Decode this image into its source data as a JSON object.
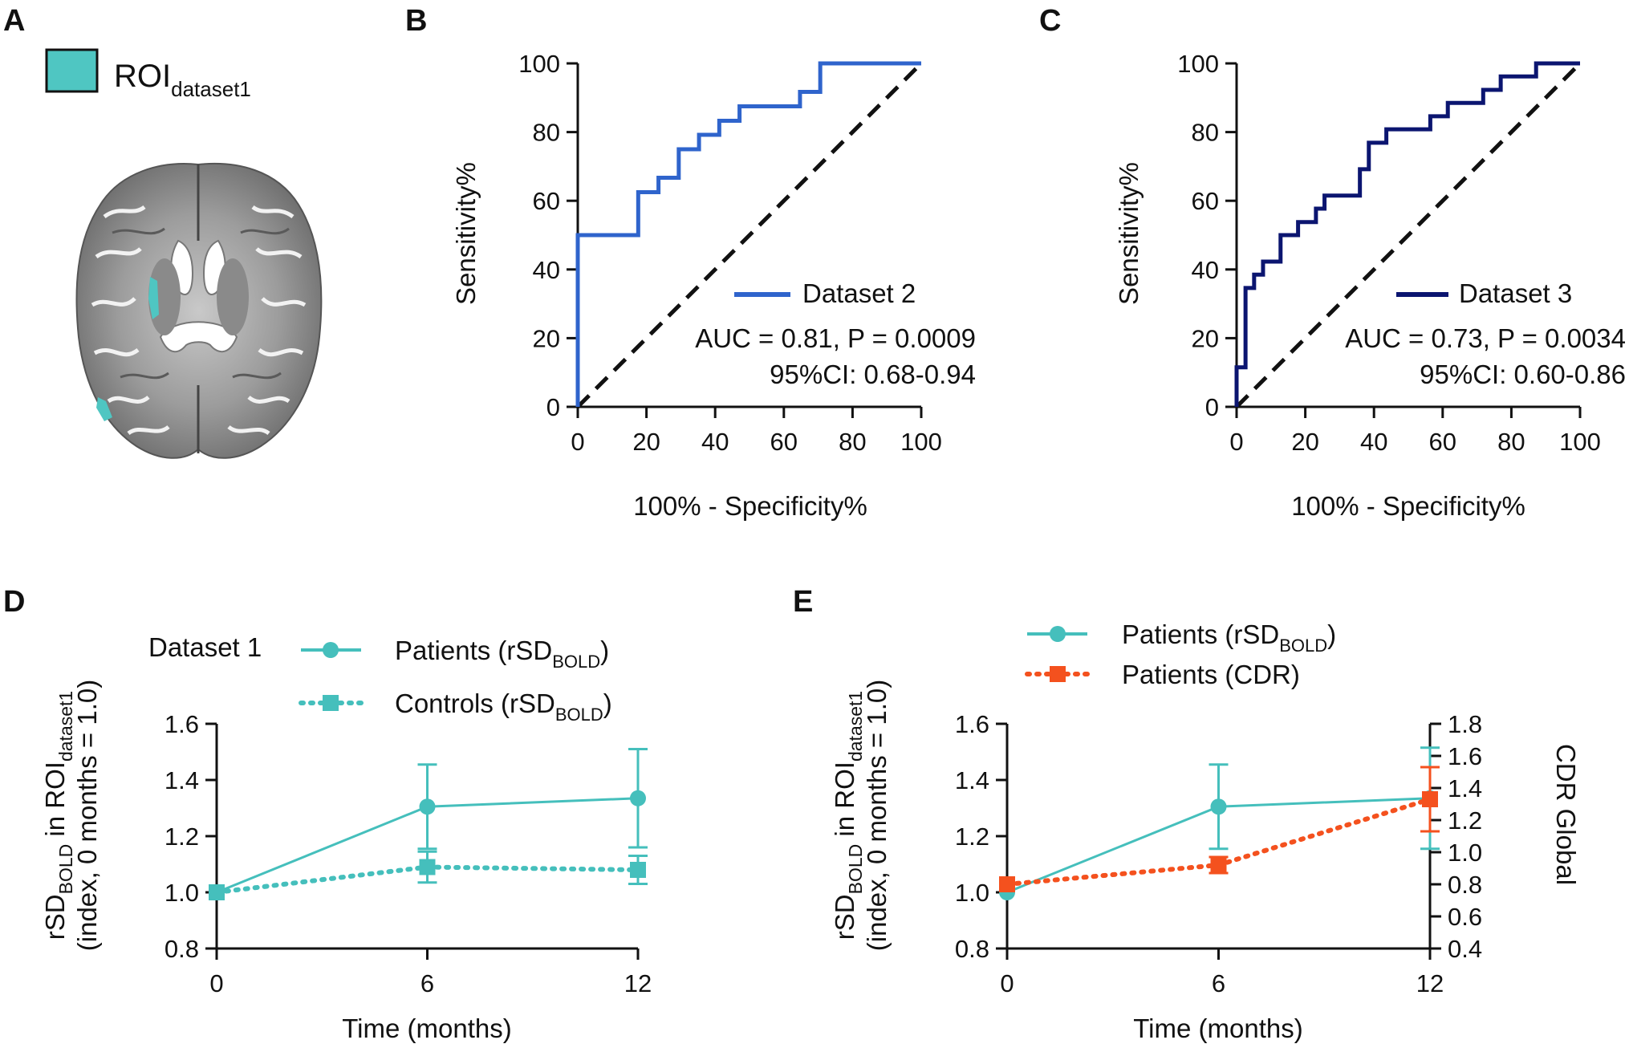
{
  "panel_letters": {
    "a": "A",
    "b": "B",
    "c": "C",
    "d": "D",
    "e": "E"
  },
  "colors": {
    "roi": "#4fc6c2",
    "dataset2": "#2f64cc",
    "dataset3": "#0b1570",
    "teal": "#45bfbc",
    "orange": "#f4511e",
    "black": "#111111"
  },
  "panel_a": {
    "legend_label": "ROI",
    "legend_sub": "dataset1",
    "image_description_icon": "brain-axial-slice-icon"
  },
  "chart_data": [
    {
      "id": "B",
      "type": "line",
      "title": "",
      "xlabel": "100% - Specificity%",
      "ylabel": "Sensitivity%",
      "xlim": [
        0,
        100
      ],
      "ylim": [
        0,
        100
      ],
      "xticks": [
        "0",
        "20",
        "40",
        "60",
        "80",
        "100"
      ],
      "yticks": [
        "0",
        "20",
        "40",
        "60",
        "80",
        "100"
      ],
      "legend": "Dataset 2",
      "auc_text": "AUC = 0.81, P = 0.0009",
      "ci_text": "95%CI: 0.68-0.94",
      "series": [
        {
          "name": "Dataset 2",
          "points": [
            [
              0,
              0
            ],
            [
              0,
              50
            ],
            [
              17.6,
              50
            ],
            [
              17.6,
              62.5
            ],
            [
              23.5,
              62.5
            ],
            [
              23.5,
              66.7
            ],
            [
              29.4,
              66.7
            ],
            [
              29.4,
              75
            ],
            [
              35.3,
              75
            ],
            [
              35.3,
              79.2
            ],
            [
              41.2,
              79.2
            ],
            [
              41.2,
              83.3
            ],
            [
              47.1,
              83.3
            ],
            [
              47.1,
              87.5
            ],
            [
              64.7,
              87.5
            ],
            [
              64.7,
              91.7
            ],
            [
              70.6,
              91.7
            ],
            [
              70.6,
              100
            ],
            [
              100,
              100
            ]
          ]
        },
        {
          "name": "reference",
          "points": [
            [
              0,
              0
            ],
            [
              100,
              100
            ]
          ]
        }
      ]
    },
    {
      "id": "C",
      "type": "line",
      "title": "",
      "xlabel": "100% - Specificity%",
      "ylabel": "Sensitivity%",
      "xlim": [
        0,
        100
      ],
      "ylim": [
        0,
        100
      ],
      "xticks": [
        "0",
        "20",
        "40",
        "60",
        "80",
        "100"
      ],
      "yticks": [
        "0",
        "20",
        "40",
        "60",
        "80",
        "100"
      ],
      "legend": "Dataset 3",
      "auc_text": "AUC = 0.73, P = 0.0034",
      "ci_text": "95%CI: 0.60-0.86",
      "series": [
        {
          "name": "Dataset 3",
          "points": [
            [
              0,
              0
            ],
            [
              0,
              11.5
            ],
            [
              2.6,
              11.5
            ],
            [
              2.6,
              34.6
            ],
            [
              5.1,
              34.6
            ],
            [
              5.1,
              38.5
            ],
            [
              7.7,
              38.5
            ],
            [
              7.7,
              42.3
            ],
            [
              12.8,
              42.3
            ],
            [
              12.8,
              50
            ],
            [
              17.9,
              50
            ],
            [
              17.9,
              53.8
            ],
            [
              23.1,
              53.8
            ],
            [
              23.1,
              57.7
            ],
            [
              25.6,
              57.7
            ],
            [
              25.6,
              61.5
            ],
            [
              35.9,
              61.5
            ],
            [
              35.9,
              69.2
            ],
            [
              38.5,
              69.2
            ],
            [
              38.5,
              76.9
            ],
            [
              43.6,
              76.9
            ],
            [
              43.6,
              80.8
            ],
            [
              56.4,
              80.8
            ],
            [
              56.4,
              84.6
            ],
            [
              61.5,
              84.6
            ],
            [
              61.5,
              88.5
            ],
            [
              71.8,
              88.5
            ],
            [
              71.8,
              92.3
            ],
            [
              76.9,
              92.3
            ],
            [
              76.9,
              96.2
            ],
            [
              87.2,
              96.2
            ],
            [
              87.2,
              100
            ],
            [
              100,
              100
            ]
          ]
        },
        {
          "name": "reference",
          "points": [
            [
              0,
              0
            ],
            [
              100,
              100
            ]
          ]
        }
      ]
    },
    {
      "id": "D",
      "type": "line",
      "title": "Dataset 1",
      "xlabel": "Time (months)",
      "ylabel_line1": "rSD",
      "ylabel_sub1": "BOLD",
      "ylabel_mid": " in ROI",
      "ylabel_sub2": "dataset1",
      "ylabel_line2": "(index, 0 months = 1.0)",
      "x": [
        0,
        6,
        12
      ],
      "xticks": [
        "0",
        "6",
        "12"
      ],
      "ylim": [
        0.8,
        1.6
      ],
      "yticks": [
        "0.8",
        "1.0",
        "1.2",
        "1.4",
        "1.6"
      ],
      "series": [
        {
          "name": "Patients",
          "sub": "BOLD",
          "label_prefix": "Patients (rSD",
          "label_suffix": ")",
          "values": [
            1.0,
            1.305,
            1.335
          ],
          "err": [
            0,
            0.15,
            0.175
          ],
          "marker": "circle",
          "style": "solid"
        },
        {
          "name": "Controls",
          "sub": "BOLD",
          "label_prefix": "Controls (rSD",
          "label_suffix": ")",
          "values": [
            1.0,
            1.09,
            1.08
          ],
          "err": [
            0,
            0.055,
            0.05
          ],
          "marker": "square",
          "style": "dotted"
        }
      ]
    },
    {
      "id": "E",
      "type": "line",
      "xlabel": "Time (months)",
      "ylabel_line1": "rSD",
      "ylabel_sub1": "BOLD",
      "ylabel_mid": " in ROI",
      "ylabel_sub2": "dataset1",
      "ylabel_line2": "(index, 0 months = 1.0)",
      "y2label": "CDR Global",
      "x": [
        0,
        6,
        12
      ],
      "xticks": [
        "0",
        "6",
        "12"
      ],
      "ylim": [
        0.8,
        1.6
      ],
      "yticks": [
        "0.8",
        "1.0",
        "1.2",
        "1.4",
        "1.6"
      ],
      "y2lim": [
        0.4,
        1.8
      ],
      "y2ticks": [
        "0.4",
        "0.6",
        "0.8",
        "1.0",
        "1.2",
        "1.4",
        "1.6",
        "1.8"
      ],
      "series": [
        {
          "name": "Patients (rSD BOLD)",
          "label_prefix": "Patients (rSD",
          "sub": "BOLD",
          "label_suffix": ")",
          "axis": "left",
          "values": [
            1.0,
            1.305,
            1.335
          ],
          "err": [
            0,
            0.15,
            0.18
          ],
          "marker": "circle",
          "style": "solid"
        },
        {
          "name": "Patients (CDR)",
          "label_prefix": "Patients (CDR)",
          "sub": "",
          "label_suffix": "",
          "axis": "right",
          "values": [
            0.8,
            0.92,
            1.33
          ],
          "err": [
            0,
            0.05,
            0.2
          ],
          "marker": "square",
          "style": "dotted"
        }
      ]
    }
  ]
}
